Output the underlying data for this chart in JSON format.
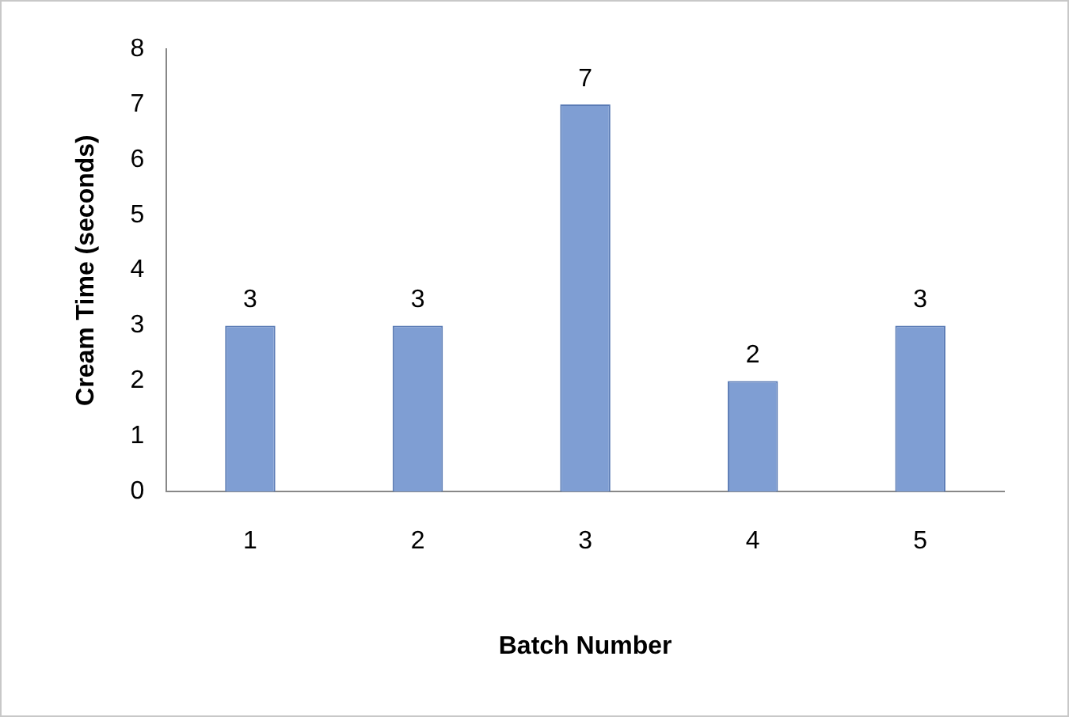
{
  "chart_data": {
    "type": "bar",
    "xlabel": "Batch Number",
    "ylabel": "Cream Time (seconds)",
    "categories": [
      "1",
      "2",
      "3",
      "4",
      "5"
    ],
    "values": [
      3,
      3,
      7,
      2,
      3
    ],
    "color": "#7f9ed3",
    "ylim": [
      0,
      8
    ],
    "yticks": [
      0,
      1,
      2,
      3,
      4,
      5,
      6,
      7,
      8
    ],
    "grid": false,
    "data_labels": true
  }
}
